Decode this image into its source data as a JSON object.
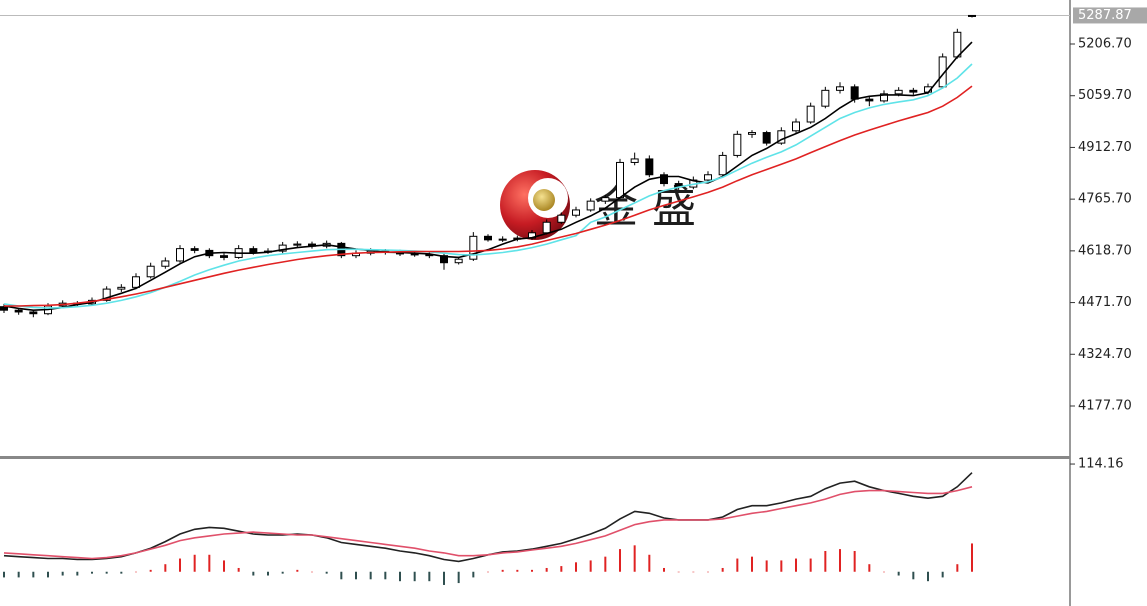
{
  "chart_data": [
    {
      "type": "candlestick",
      "watermark": "金 盛",
      "ylim": [
        4032.7,
        5331.8
      ],
      "yticks": [
        {
          "value": 5206.7,
          "label": "5206.70"
        },
        {
          "value": 5059.7,
          "label": "5059.70"
        },
        {
          "value": 4912.7,
          "label": "4912.70"
        },
        {
          "value": 4765.7,
          "label": "4765.70"
        },
        {
          "value": 4618.7,
          "label": "4618.70"
        },
        {
          "value": 4471.7,
          "label": "4471.70"
        },
        {
          "value": 4324.7,
          "label": "4324.70"
        },
        {
          "value": 4177.7,
          "label": "4177.70"
        }
      ],
      "last_price": 5287.87,
      "up_color": "#ffffff",
      "down_color": "#000000",
      "wick_color": "#000000",
      "candles": [
        [
          4460,
          4468,
          4442,
          4450
        ],
        [
          4450,
          4455,
          4437,
          4445
        ],
        [
          4445,
          4450,
          4430,
          4440
        ],
        [
          4440,
          4470,
          4436,
          4462
        ],
        [
          4462,
          4478,
          4455,
          4470
        ],
        [
          4470,
          4476,
          4460,
          4468
        ],
        [
          4468,
          4486,
          4462,
          4478
        ],
        [
          4478,
          4518,
          4474,
          4510
        ],
        [
          4510,
          4524,
          4502,
          4515
        ],
        [
          4515,
          4555,
          4510,
          4545
        ],
        [
          4545,
          4585,
          4540,
          4575
        ],
        [
          4575,
          4600,
          4568,
          4590
        ],
        [
          4590,
          4635,
          4585,
          4625
        ],
        [
          4625,
          4632,
          4612,
          4620
        ],
        [
          4620,
          4626,
          4598,
          4605
        ],
        [
          4605,
          4612,
          4592,
          4600
        ],
        [
          4600,
          4635,
          4596,
          4625
        ],
        [
          4625,
          4632,
          4608,
          4615
        ],
        [
          4615,
          4626,
          4610,
          4618
        ],
        [
          4618,
          4644,
          4612,
          4635
        ],
        [
          4635,
          4646,
          4628,
          4638
        ],
        [
          4638,
          4645,
          4625,
          4632
        ],
        [
          4632,
          4648,
          4626,
          4640
        ],
        [
          4640,
          4644,
          4598,
          4605
        ],
        [
          4605,
          4620,
          4598,
          4612
        ],
        [
          4612,
          4626,
          4606,
          4618
        ],
        [
          4618,
          4624,
          4608,
          4615
        ],
        [
          4615,
          4622,
          4604,
          4610
        ],
        [
          4610,
          4616,
          4602,
          4608
        ],
        [
          4608,
          4614,
          4598,
          4605
        ],
        [
          4605,
          4610,
          4565,
          4585
        ],
        [
          4585,
          4602,
          4580,
          4595
        ],
        [
          4595,
          4672,
          4590,
          4660
        ],
        [
          4660,
          4666,
          4645,
          4650
        ],
        [
          4650,
          4660,
          4644,
          4652
        ],
        [
          4652,
          4662,
          4646,
          4655
        ],
        [
          4655,
          4678,
          4650,
          4670
        ],
        [
          4670,
          4708,
          4665,
          4700
        ],
        [
          4700,
          4728,
          4695,
          4720
        ],
        [
          4720,
          4744,
          4714,
          4735
        ],
        [
          4735,
          4768,
          4730,
          4760
        ],
        [
          4760,
          4778,
          4752,
          4770
        ],
        [
          4770,
          4880,
          4765,
          4870
        ],
        [
          4870,
          4898,
          4862,
          4880
        ],
        [
          4880,
          4890,
          4828,
          4835
        ],
        [
          4835,
          4842,
          4802,
          4810
        ],
        [
          4810,
          4818,
          4792,
          4800
        ],
        [
          4800,
          4830,
          4794,
          4820
        ],
        [
          4820,
          4845,
          4812,
          4835
        ],
        [
          4835,
          4900,
          4830,
          4890
        ],
        [
          4890,
          4960,
          4884,
          4950
        ],
        [
          4950,
          4962,
          4940,
          4955
        ],
        [
          4955,
          4960,
          4918,
          4925
        ],
        [
          4925,
          4970,
          4920,
          4960
        ],
        [
          4960,
          4995,
          4954,
          4985
        ],
        [
          4985,
          5040,
          4980,
          5030
        ],
        [
          5030,
          5085,
          5024,
          5075
        ],
        [
          5075,
          5098,
          5066,
          5085
        ],
        [
          5085,
          5092,
          5040,
          5050
        ],
        [
          5050,
          5060,
          5030,
          5045
        ],
        [
          5045,
          5075,
          5040,
          5065
        ],
        [
          5065,
          5084,
          5058,
          5075
        ],
        [
          5075,
          5082,
          5062,
          5070
        ],
        [
          5070,
          5094,
          5064,
          5085
        ],
        [
          5085,
          5180,
          5080,
          5170
        ],
        [
          5170,
          5250,
          5165,
          5240
        ],
        [
          5285,
          5289,
          5282,
          5287.87
        ]
      ],
      "series": [
        {
          "color": "#000000",
          "values": [
            4462,
            4455,
            4450,
            4452,
            4458,
            4466,
            4472,
            4485,
            4498,
            4512,
            4535,
            4558,
            4582,
            4602,
            4612,
            4614,
            4612,
            4612,
            4615,
            4622,
            4628,
            4632,
            4636,
            4630,
            4624,
            4620,
            4615,
            4614,
            4612,
            4610,
            4603,
            4600,
            4610,
            4622,
            4638,
            4652,
            4656,
            4668,
            4680,
            4700,
            4718,
            4740,
            4770,
            4800,
            4822,
            4830,
            4830,
            4818,
            4812,
            4830,
            4860,
            4890,
            4910,
            4935,
            4952,
            4970,
            4995,
            5025,
            5050,
            5058,
            5062,
            5062,
            5060,
            5068,
            5120,
            5170,
            5212
          ]
        },
        {
          "color": "#5fe3e8",
          "values": [
            4468,
            4462,
            4458,
            4456,
            4457,
            4460,
            4464,
            4470,
            4478,
            4488,
            4500,
            4515,
            4532,
            4550,
            4565,
            4578,
            4590,
            4598,
            4605,
            4610,
            4614,
            4618,
            4622,
            4623,
            4623,
            4622,
            4621,
            4620,
            4618,
            4616,
            4612,
            4608,
            4607,
            4610,
            4614,
            4620,
            4628,
            4638,
            4650,
            4662,
            4700,
            4715,
            4735,
            4755,
            4775,
            4790,
            4800,
            4808,
            4815,
            4828,
            4848,
            4868,
            4885,
            4900,
            4920,
            4945,
            4970,
            4995,
            5012,
            5025,
            5035,
            5042,
            5048,
            5060,
            5082,
            5110,
            5150
          ]
        },
        {
          "color": "#e02222",
          "values": [
            4462,
            4462,
            4463,
            4464,
            4466,
            4470,
            4475,
            4481,
            4488,
            4496,
            4505,
            4515,
            4525,
            4535,
            4545,
            4555,
            4564,
            4572,
            4580,
            4587,
            4594,
            4600,
            4605,
            4609,
            4612,
            4614,
            4615,
            4616,
            4617,
            4617,
            4617,
            4617,
            4618,
            4620,
            4624,
            4630,
            4638,
            4648,
            4658,
            4668,
            4680,
            4692,
            4705,
            4720,
            4735,
            4748,
            4760,
            4772,
            4785,
            4800,
            4818,
            4835,
            4850,
            4865,
            4880,
            4898,
            4915,
            4932,
            4948,
            4962,
            4975,
            4988,
            5000,
            5012,
            5030,
            5055,
            5087
          ]
        }
      ]
    },
    {
      "type": "macd",
      "ylim": [
        -36.3,
        119.5
      ],
      "yticks": [
        114.16
      ],
      "hist_up_color": "#e02222",
      "hist_down_color": "#2f4f4f",
      "histogram": [
        -6,
        -6,
        -6,
        -6,
        -4,
        -4,
        -2,
        -2,
        -2,
        0,
        2,
        8,
        14,
        18,
        18,
        12,
        4,
        -4,
        -4,
        -2,
        2,
        0,
        -2,
        -8,
        -8,
        -8,
        -8,
        -10,
        -10,
        -10,
        -14,
        -12,
        -6,
        0,
        2,
        2,
        2,
        4,
        6,
        10,
        12,
        16,
        24,
        28,
        18,
        4,
        0,
        0,
        0,
        4,
        14,
        16,
        12,
        12,
        14,
        14,
        22,
        24,
        22,
        8,
        0,
        -4,
        -8,
        -10,
        -6,
        8,
        30
      ],
      "series": [
        {
          "color": "#222222",
          "values": [
            17,
            16,
            15,
            14,
            14,
            13,
            13,
            14,
            16,
            20,
            25,
            32,
            40,
            45,
            47,
            46,
            43,
            40,
            39,
            39,
            40,
            39,
            36,
            31,
            29,
            27,
            25,
            22,
            20,
            17,
            13,
            11,
            14,
            18,
            21,
            22,
            24,
            27,
            30,
            35,
            40,
            46,
            56,
            64,
            62,
            57,
            55,
            55,
            55,
            58,
            66,
            70,
            70,
            73,
            77,
            80,
            88,
            94,
            96,
            90,
            86,
            83,
            80,
            78,
            80,
            90,
            105
          ]
        },
        {
          "color": "#e0506a",
          "values": [
            20,
            19,
            18,
            17,
            16,
            15,
            14,
            15,
            17,
            20,
            24,
            28,
            33,
            36,
            38,
            40,
            41,
            42,
            41,
            40,
            39,
            39,
            37,
            35,
            33,
            31,
            29,
            27,
            25,
            22,
            20,
            17,
            17,
            18,
            20,
            21,
            23,
            25,
            27,
            30,
            34,
            38,
            44,
            50,
            53,
            55,
            55,
            55,
            55,
            56,
            59,
            62,
            64,
            67,
            70,
            73,
            77,
            82,
            85,
            86,
            86,
            85,
            84,
            83,
            83,
            86,
            90
          ]
        }
      ]
    }
  ]
}
